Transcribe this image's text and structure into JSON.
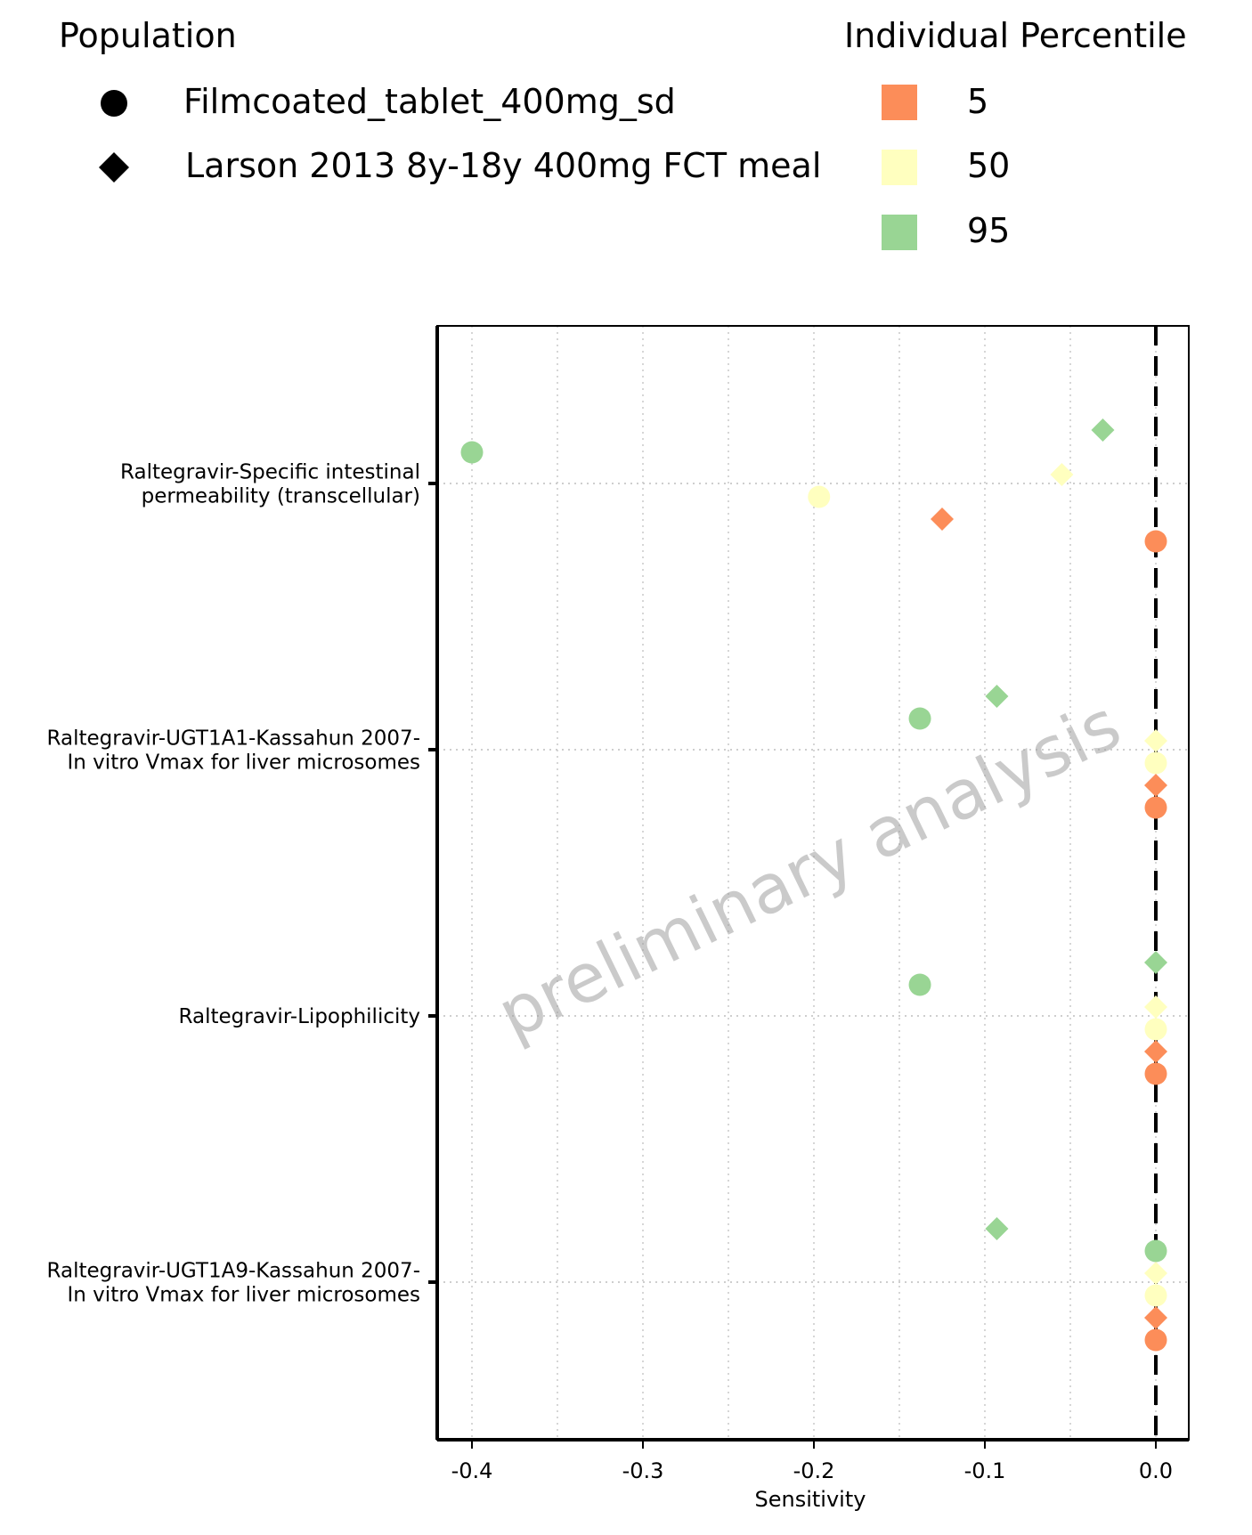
{
  "legend": {
    "population_title": "Population",
    "population_items": [
      {
        "label": "Filmcoated_tablet_400mg_sd",
        "shape": "circle"
      },
      {
        "label": "Larson 2013 8y-18y 400mg FCT meal",
        "shape": "diamond"
      }
    ],
    "percentile_title": "Individual Percentile",
    "percentile_items": [
      {
        "label": "5",
        "color": "#FC8D59"
      },
      {
        "label": "50",
        "color": "#FFFFBF"
      },
      {
        "label": "95",
        "color": "#99D594"
      }
    ]
  },
  "watermark": "preliminary analysis",
  "chart_data": {
    "type": "scatter",
    "xlabel": "Sensitivity",
    "ylabel": "",
    "xlim": [
      -0.42,
      0.0
    ],
    "x_ticks": [
      "-0.4",
      "-0.3",
      "-0.2",
      "-0.1",
      "0.0"
    ],
    "x_tick_values": [
      -0.4,
      -0.3,
      -0.2,
      -0.1,
      0.0
    ],
    "reference_line_x": 0.0,
    "grid": true,
    "categories": [
      {
        "lines": [
          "Raltegravir-Specific intestinal",
          "permeability (transcellular)"
        ]
      },
      {
        "lines": [
          "Raltegravir-UGT1A1-Kassahun 2007-",
          "In vitro Vmax for liver microsomes"
        ]
      },
      {
        "lines": [
          "Raltegravir-Lipophilicity"
        ]
      },
      {
        "lines": [
          "Raltegravir-UGT1A9-Kassahun 2007-",
          "In vitro Vmax for liver microsomes"
        ]
      }
    ],
    "series": [
      {
        "population": "Filmcoated_tablet_400mg_sd",
        "percentile": "95",
        "shape": "circle",
        "color": "#99D594",
        "values": [
          -0.4,
          -0.138,
          -0.138,
          0.0
        ]
      },
      {
        "population": "Larson 2013 8y-18y 400mg FCT meal",
        "percentile": "95",
        "shape": "diamond",
        "color": "#99D594",
        "values": [
          -0.031,
          -0.093,
          0.0,
          -0.093
        ]
      },
      {
        "population": "Filmcoated_tablet_400mg_sd",
        "percentile": "50",
        "shape": "circle",
        "color": "#FFFFBF",
        "values": [
          -0.197,
          0.0,
          0.0,
          0.0
        ]
      },
      {
        "population": "Larson 2013 8y-18y 400mg FCT meal",
        "percentile": "50",
        "shape": "diamond",
        "color": "#FFFFBF",
        "values": [
          -0.055,
          0.0,
          0.0,
          0.0
        ]
      },
      {
        "population": "Filmcoated_tablet_400mg_sd",
        "percentile": "5",
        "shape": "circle",
        "color": "#FC8D59",
        "values": [
          0.0,
          0.0,
          0.0,
          0.0
        ]
      },
      {
        "population": "Larson 2013 8y-18y 400mg FCT meal",
        "percentile": "5",
        "shape": "diamond",
        "color": "#FC8D59",
        "values": [
          -0.125,
          0.0,
          0.0,
          0.0
        ]
      }
    ]
  }
}
